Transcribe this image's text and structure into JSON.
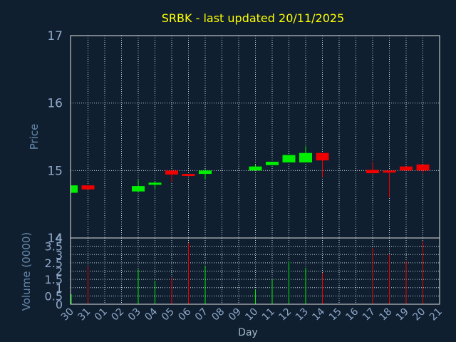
{
  "chart_data": [
    {
      "type": "candlestick",
      "title": "SRBK - last updated 20/11/2025",
      "ylabel": "Price",
      "ylim": [
        14,
        17
      ],
      "yticks": [
        "14",
        "15",
        "16",
        "17"
      ],
      "colors": {
        "up": "#00ee00",
        "down": "#ee0000"
      },
      "categories": [
        "30",
        "31",
        "01",
        "02",
        "03",
        "04",
        "05",
        "06",
        "07",
        "08",
        "09",
        "10",
        "11",
        "12",
        "13",
        "14",
        "15",
        "16",
        "17",
        "18",
        "19",
        "20",
        "21"
      ],
      "candles": [
        {
          "day": "30",
          "open": 14.67,
          "close": 14.78,
          "high": 14.78,
          "low": 14.67
        },
        {
          "day": "31",
          "open": 14.78,
          "close": 14.72,
          "high": 14.78,
          "low": 14.72
        },
        {
          "day": "03",
          "open": 14.69,
          "close": 14.77,
          "high": 14.86,
          "low": 14.69
        },
        {
          "day": "04",
          "open": 14.79,
          "close": 14.82,
          "high": 14.84,
          "low": 14.73
        },
        {
          "day": "05",
          "open": 15.0,
          "close": 14.94,
          "high": 15.0,
          "low": 14.83
        },
        {
          "day": "06",
          "open": 14.95,
          "close": 14.92,
          "high": 14.95,
          "low": 14.92
        },
        {
          "day": "07",
          "open": 14.95,
          "close": 15.0,
          "high": 15.02,
          "low": 14.87
        },
        {
          "day": "10",
          "open": 15.0,
          "close": 15.06,
          "high": 15.09,
          "low": 15.0
        },
        {
          "day": "11",
          "open": 15.08,
          "close": 15.13,
          "high": 15.13,
          "low": 15.08
        },
        {
          "day": "12",
          "open": 15.12,
          "close": 15.23,
          "high": 15.23,
          "low": 15.12
        },
        {
          "day": "13",
          "open": 15.12,
          "close": 15.26,
          "high": 15.36,
          "low": 15.12
        },
        {
          "day": "14",
          "open": 15.26,
          "close": 15.15,
          "high": 15.26,
          "low": 14.9
        },
        {
          "day": "17",
          "open": 15.01,
          "close": 14.96,
          "high": 15.13,
          "low": 14.96
        },
        {
          "day": "18",
          "open": 15.0,
          "close": 14.98,
          "high": 15.0,
          "low": 14.6
        },
        {
          "day": "19",
          "open": 15.06,
          "close": 15.0,
          "high": 15.06,
          "low": 15.0
        },
        {
          "day": "20",
          "open": 15.09,
          "close": 15.0,
          "high": 15.09,
          "low": 14.96
        }
      ]
    },
    {
      "type": "bar",
      "ylabel": "Volume (0000)",
      "xlabel": "Day",
      "ylim": [
        0,
        4
      ],
      "yticks": [
        "0",
        "0.5",
        "1",
        "1.5",
        "2",
        "2.5",
        "3",
        "3.5",
        "4"
      ],
      "categories": [
        "30",
        "31",
        "01",
        "02",
        "03",
        "04",
        "05",
        "06",
        "07",
        "08",
        "09",
        "10",
        "11",
        "12",
        "13",
        "14",
        "15",
        "16",
        "17",
        "18",
        "19",
        "20",
        "21"
      ],
      "bars": [
        {
          "day": "30",
          "value": 0.6,
          "direction": "up"
        },
        {
          "day": "31",
          "value": 2.3,
          "direction": "down"
        },
        {
          "day": "03",
          "value": 2.1,
          "direction": "up"
        },
        {
          "day": "04",
          "value": 1.4,
          "direction": "up"
        },
        {
          "day": "05",
          "value": 1.6,
          "direction": "down"
        },
        {
          "day": "06",
          "value": 3.7,
          "direction": "down"
        },
        {
          "day": "07",
          "value": 2.3,
          "direction": "up"
        },
        {
          "day": "10",
          "value": 0.9,
          "direction": "up"
        },
        {
          "day": "11",
          "value": 1.5,
          "direction": "up"
        },
        {
          "day": "12",
          "value": 2.6,
          "direction": "up"
        },
        {
          "day": "13",
          "value": 2.2,
          "direction": "up"
        },
        {
          "day": "14",
          "value": 1.9,
          "direction": "down"
        },
        {
          "day": "17",
          "value": 3.4,
          "direction": "down"
        },
        {
          "day": "18",
          "value": 3.0,
          "direction": "down"
        },
        {
          "day": "19",
          "value": 2.6,
          "direction": "down"
        },
        {
          "day": "20",
          "value": 3.8,
          "direction": "down"
        }
      ]
    }
  ]
}
